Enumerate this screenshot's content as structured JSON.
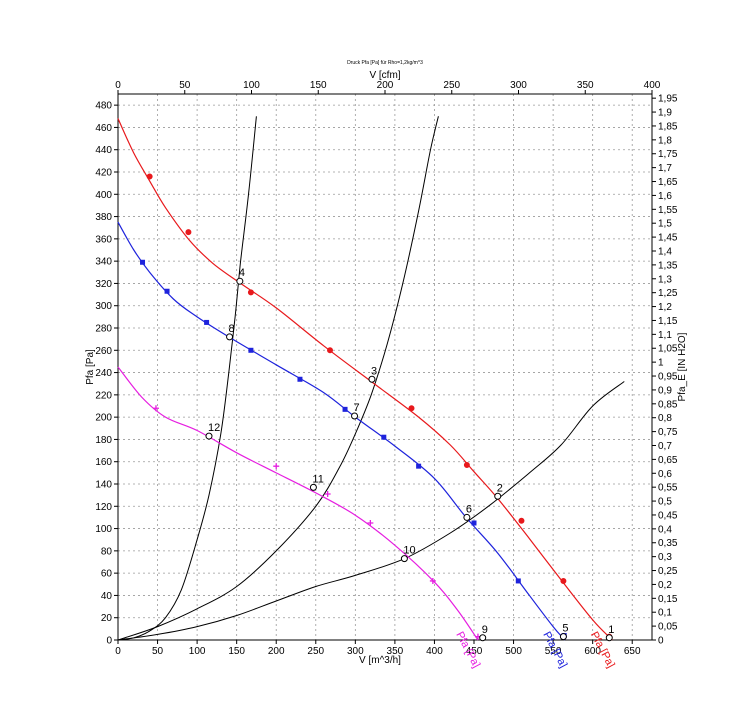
{
  "chart_data": {
    "type": "line",
    "title": "Druck Pfa [Pa] für Rho=1,2kg/m^3",
    "x_bottom": {
      "label": "V [m^3/h]",
      "range": [
        0,
        675
      ],
      "ticks": [
        0,
        50,
        100,
        150,
        200,
        250,
        300,
        350,
        400,
        450,
        500,
        550,
        600,
        650
      ]
    },
    "x_top": {
      "label": "V [cfm]",
      "range": [
        0,
        400
      ],
      "ticks": [
        0,
        50,
        100,
        150,
        200,
        250,
        300,
        350,
        400
      ]
    },
    "y_left": {
      "label": "Pfa [Pa]",
      "range": [
        0,
        490
      ],
      "ticks": [
        0,
        20,
        40,
        60,
        80,
        100,
        120,
        140,
        160,
        180,
        200,
        220,
        240,
        260,
        280,
        300,
        320,
        340,
        360,
        380,
        400,
        420,
        440,
        460,
        480
      ]
    },
    "y_right": {
      "label": "Pfa_E [IN H2O]",
      "range": [
        0,
        1.965
      ],
      "ticks": [
        "0",
        "0,05",
        "0,1",
        "0,15",
        "0,2",
        "0,25",
        "0,3",
        "0,35",
        "0,4",
        "0,45",
        "0,5",
        "0,55",
        "0,6",
        "0,65",
        "0,7",
        "0,75",
        "0,8",
        "0,85",
        "0,9",
        "0,95",
        "1",
        "1,05",
        "1,1",
        "1,15",
        "1,2",
        "1,25",
        "1,3",
        "1,35",
        "1,4",
        "1,45",
        "1,5",
        "1,55",
        "1,6",
        "1,65",
        "1,7",
        "1,75",
        "1,8",
        "1,85",
        "1,9",
        "1,95"
      ]
    },
    "grid": true,
    "series": [
      {
        "name": "Pfa [Pa]",
        "color": "#e8191c",
        "marker": "circle",
        "points": [
          [
            0,
            468
          ],
          [
            20,
            437
          ],
          [
            40,
            412
          ],
          [
            60,
            388
          ],
          [
            90,
            359
          ],
          [
            120,
            338
          ],
          [
            155,
            320
          ],
          [
            200,
            298
          ],
          [
            260,
            264
          ],
          [
            320,
            232
          ],
          [
            380,
            200
          ],
          [
            420,
            175
          ],
          [
            450,
            151
          ],
          [
            480,
            127
          ],
          [
            520,
            91
          ],
          [
            560,
            54
          ],
          [
            600,
            18
          ],
          [
            625,
            0
          ]
        ],
        "markers": [
          [
            40,
            416
          ],
          [
            89,
            366
          ],
          [
            168,
            312
          ],
          [
            268,
            260
          ],
          [
            371,
            208
          ],
          [
            441,
            157
          ],
          [
            510,
            107
          ],
          [
            563,
            53
          ],
          [
            621,
            3
          ]
        ]
      },
      {
        "name": "Pfa [Pa]",
        "color": "#1e23dc",
        "marker": "square",
        "points": [
          [
            0,
            375
          ],
          [
            20,
            350
          ],
          [
            40,
            330
          ],
          [
            70,
            306
          ],
          [
            100,
            290
          ],
          [
            140,
            272
          ],
          [
            200,
            247
          ],
          [
            260,
            222
          ],
          [
            300,
            200
          ],
          [
            350,
            174
          ],
          [
            400,
            145
          ],
          [
            440,
            110
          ],
          [
            480,
            78
          ],
          [
            520,
            40
          ],
          [
            550,
            12
          ],
          [
            565,
            0
          ]
        ],
        "markers": [
          [
            31,
            339
          ],
          [
            62,
            313
          ],
          [
            112,
            285
          ],
          [
            168,
            260
          ],
          [
            230,
            234
          ],
          [
            287,
            207
          ],
          [
            336,
            182
          ],
          [
            380,
            156
          ],
          [
            450,
            105
          ],
          [
            506,
            53
          ],
          [
            564,
            4
          ]
        ]
      },
      {
        "name": "Pfa [Pa]",
        "color": "#e61ee0",
        "marker": "plus",
        "points": [
          [
            0,
            245
          ],
          [
            30,
            218
          ],
          [
            60,
            200
          ],
          [
            100,
            188
          ],
          [
            150,
            168
          ],
          [
            200,
            150
          ],
          [
            250,
            132
          ],
          [
            300,
            112
          ],
          [
            350,
            85
          ],
          [
            400,
            52
          ],
          [
            430,
            26
          ],
          [
            455,
            0
          ]
        ],
        "markers": [
          [
            48,
            208
          ],
          [
            200,
            156
          ],
          [
            265,
            131
          ],
          [
            319,
            105
          ],
          [
            398,
            53
          ],
          [
            455,
            3
          ]
        ]
      }
    ],
    "system_curves": [
      {
        "color": "#000000",
        "points": [
          [
            0,
            0
          ],
          [
            20,
            2
          ],
          [
            40,
            8
          ],
          [
            60,
            20
          ],
          [
            80,
            45
          ],
          [
            100,
            90
          ],
          [
            115,
            130
          ],
          [
            130,
            185
          ],
          [
            140,
            240
          ],
          [
            148,
            290
          ],
          [
            155,
            340
          ],
          [
            165,
            400
          ],
          [
            175,
            470
          ]
        ]
      },
      {
        "color": "#000000",
        "points": [
          [
            0,
            0
          ],
          [
            50,
            12
          ],
          [
            100,
            28
          ],
          [
            150,
            48
          ],
          [
            200,
            80
          ],
          [
            250,
            120
          ],
          [
            280,
            155
          ],
          [
            300,
            185
          ],
          [
            320,
            220
          ],
          [
            340,
            265
          ],
          [
            360,
            320
          ],
          [
            380,
            385
          ],
          [
            395,
            440
          ],
          [
            405,
            470
          ]
        ]
      },
      {
        "color": "#000000",
        "points": [
          [
            0,
            0
          ],
          [
            50,
            5
          ],
          [
            100,
            12
          ],
          [
            150,
            22
          ],
          [
            200,
            35
          ],
          [
            250,
            48
          ],
          [
            300,
            58
          ],
          [
            362,
            73
          ],
          [
            420,
            96
          ],
          [
            470,
            121
          ],
          [
            520,
            150
          ],
          [
            560,
            175
          ],
          [
            600,
            210
          ],
          [
            640,
            232
          ]
        ]
      }
    ],
    "operating_points": [
      {
        "label": "2",
        "x": 480,
        "y": 129
      },
      {
        "label": "3",
        "x": 321,
        "y": 234
      },
      {
        "label": "4",
        "x": 154,
        "y": 322
      },
      {
        "label": "6",
        "x": 441,
        "y": 110
      },
      {
        "label": "7",
        "x": 299,
        "y": 201
      },
      {
        "label": "8",
        "x": 141,
        "y": 272
      },
      {
        "label": "10",
        "x": 362,
        "y": 73
      },
      {
        "label": "11",
        "x": 247,
        "y": 137
      },
      {
        "label": "12",
        "x": 115,
        "y": 183
      },
      {
        "label": "1",
        "x": 621,
        "y": 2
      },
      {
        "label": "5",
        "x": 563,
        "y": 3
      },
      {
        "label": "9",
        "x": 461,
        "y": 2
      }
    ]
  }
}
